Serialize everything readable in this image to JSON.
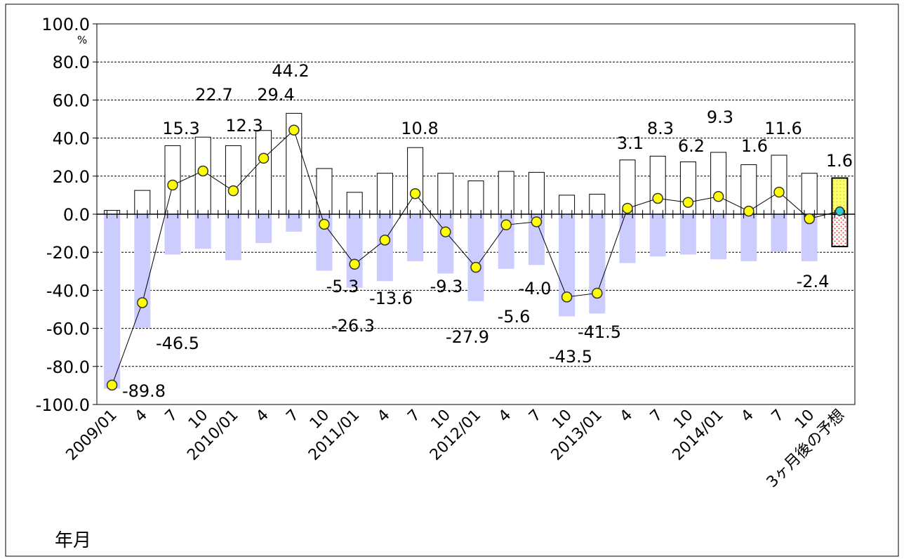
{
  "chart_data": {
    "type": "bar",
    "unit": "%",
    "xlabel": "年月",
    "ylim": [
      -100,
      100
    ],
    "yticks": [
      "100.0",
      "80.0",
      "60.0",
      "40.0",
      "20.0",
      "0.0",
      "-20.0",
      "-40.0",
      "-60.0",
      "-80.0",
      "-100.0"
    ],
    "categories": [
      "2009/01",
      "4",
      "7",
      "10",
      "2010/01",
      "4",
      "7",
      "10",
      "2011/01",
      "4",
      "7",
      "10",
      "2012/01",
      "4",
      "7",
      "10",
      "2013/01",
      "4",
      "7",
      "10",
      "2014/01",
      "4",
      "7",
      "10",
      "3ヶ月後の予想"
    ],
    "series": [
      {
        "values": [
          2,
          12.5,
          36,
          40.5,
          36,
          44,
          53,
          24,
          11.5,
          21.5,
          35,
          21.5,
          17.5,
          22.5,
          22,
          10,
          10.5,
          28.5,
          30.5,
          27.5,
          32.5,
          26,
          31,
          21.5,
          19
        ]
      },
      {
        "values": [
          -91.5,
          -59.5,
          -21,
          -18,
          -24,
          -15,
          -9,
          -29.5,
          -38.5,
          -35,
          -24.5,
          -31,
          -45.5,
          -28.5,
          -26.5,
          -53.5,
          -52,
          -25.5,
          -22,
          -21,
          -23.5,
          -24.5,
          -19.5,
          -24.5,
          -17
        ]
      },
      {
        "type": "line",
        "values": [
          -89.8,
          -46.5,
          15.3,
          22.7,
          12.3,
          29.4,
          44.2,
          -5.3,
          -26.3,
          -13.6,
          10.8,
          -9.3,
          -27.9,
          -5.6,
          -4.0,
          -43.5,
          -41.5,
          3.1,
          8.3,
          6.2,
          9.3,
          1.6,
          11.6,
          -2.4,
          1.6
        ]
      }
    ],
    "data_labels": [
      "-89.8",
      "-46.5",
      "15.3",
      "22.7",
      "12.3",
      "29.4",
      "44.2",
      "-5.3",
      "-26.3",
      "-13.6",
      "10.8",
      "-9.3",
      "-27.9",
      "-5.6",
      "-4.0",
      "-43.5",
      "-41.5",
      "3.1",
      "8.3",
      "6.2",
      "9.3",
      "1.6",
      "11.6",
      "-2.4",
      "1.6"
    ],
    "colors": {
      "positive_bar": "#ffffff",
      "negative_bar": "#ccccff",
      "forecast_positive": "#ffff99",
      "forecast_negative": "#ff6666",
      "marker": "#ffff00",
      "forecast_marker": "#33cccc",
      "line": "#000000"
    },
    "grid": true,
    "legend": "none"
  }
}
